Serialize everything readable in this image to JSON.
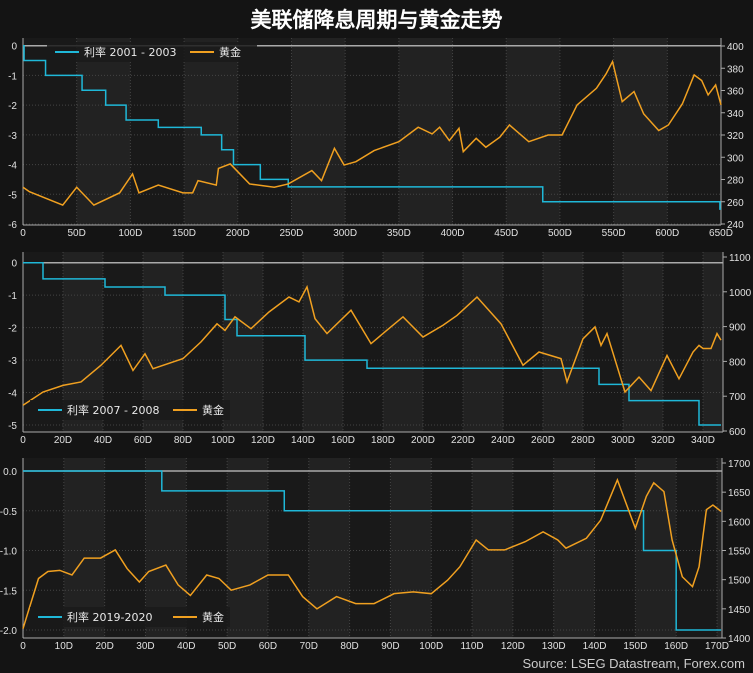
{
  "title": "美联储降息周期与黄金走势",
  "source": "Source: LSEG Datastream, Forex.com",
  "colors": {
    "rate": "#1fb8d8",
    "gold": "#f0a020",
    "background": "#141414",
    "plot": "#1c1c1c"
  },
  "chart_data": [
    {
      "type": "line",
      "legend": [
        "利率 2001 - 2003",
        "黄金"
      ],
      "legend_position": "top-left",
      "grid": true,
      "xlim": [
        0,
        650
      ],
      "x_ticks": [
        "0",
        "50D",
        "100D",
        "150D",
        "200D",
        "250D",
        "300D",
        "350D",
        "400D",
        "450D",
        "500D",
        "550D",
        "600D",
        "650D"
      ],
      "y_left": {
        "lim": [
          -6,
          0
        ],
        "ticks": [
          "0",
          "-1",
          "-2",
          "-3",
          "-4",
          "-5",
          "-6"
        ]
      },
      "y_right": {
        "lim": [
          240,
          400
        ],
        "ticks": [
          "400",
          "380",
          "360",
          "340",
          "320",
          "300",
          "280",
          "260",
          "240"
        ]
      },
      "series": [
        {
          "name": "利率 2001 - 2003",
          "axis": "left",
          "step": true,
          "x": [
            0,
            1,
            21,
            55,
            77,
            96,
            126,
            166,
            185,
            196,
            221,
            247,
            484,
            649,
            650
          ],
          "y": [
            0,
            -0.5,
            -1,
            -1.5,
            -2,
            -2.5,
            -2.75,
            -3,
            -3.5,
            -4,
            -4.5,
            -4.75,
            -5.25,
            -5.5,
            -5.5
          ]
        },
        {
          "name": "黄金",
          "axis": "right",
          "x": [
            0,
            6,
            37,
            50,
            66,
            90,
            102,
            108,
            126,
            149,
            158,
            163,
            180,
            182,
            193,
            211,
            234,
            247,
            269,
            278,
            290,
            299,
            310,
            327,
            350,
            368,
            381,
            388,
            397,
            406,
            410,
            422,
            431,
            444,
            453,
            471,
            489,
            502,
            516,
            534,
            543,
            549,
            558,
            569,
            578,
            592,
            601,
            614,
            625,
            632,
            638,
            645,
            650
          ],
          "y": [
            273,
            269,
            257,
            273,
            257,
            268,
            285,
            268,
            275,
            268,
            268,
            279,
            275,
            290,
            294,
            276,
            273,
            276,
            288,
            279,
            308,
            293,
            296,
            306,
            314,
            327,
            321,
            327,
            315,
            326,
            305,
            317,
            309,
            318,
            329,
            314,
            320,
            320,
            347,
            362,
            375,
            386,
            350,
            359,
            339,
            324,
            329,
            348,
            374,
            369,
            356,
            365,
            347
          ]
        }
      ]
    },
    {
      "type": "line",
      "legend": [
        "利率 2007 - 2008",
        "黄金"
      ],
      "legend_position": "bottom-left",
      "grid": true,
      "xlim": [
        0,
        350
      ],
      "x_ticks": [
        "0",
        "20D",
        "40D",
        "60D",
        "80D",
        "100D",
        "120D",
        "140D",
        "160D",
        "180D",
        "200D",
        "220D",
        "240D",
        "260D",
        "280D",
        "300D",
        "320D",
        "340D"
      ],
      "y_left": {
        "lim": [
          -5,
          0
        ],
        "ticks": [
          "0",
          "-1",
          "-2",
          "-3",
          "-4",
          "-5"
        ]
      },
      "y_right": {
        "lim": [
          600,
          1100
        ],
        "ticks": [
          "1100",
          "1000",
          "900",
          "800",
          "700",
          "600"
        ]
      },
      "series": [
        {
          "name": "利率 2007 - 2008",
          "axis": "left",
          "step": true,
          "x": [
            0,
            10,
            41,
            71,
            101,
            107,
            141,
            172,
            288,
            303,
            338,
            349
          ],
          "y": [
            0,
            -0.5,
            -0.75,
            -1,
            -1.75,
            -2.25,
            -3,
            -3.25,
            -3.75,
            -4.25,
            -5,
            -5
          ]
        },
        {
          "name": "黄金",
          "axis": "right",
          "x": [
            0,
            10,
            20,
            29,
            39,
            49,
            55,
            61,
            65,
            80,
            89,
            97,
            101,
            106,
            114,
            123,
            133,
            138,
            142,
            146,
            152,
            164,
            174,
            181,
            190,
            200,
            210,
            217,
            227,
            239,
            250,
            258,
            269,
            272,
            280,
            286,
            289,
            292,
            301,
            308,
            314,
            322,
            328,
            335,
            338,
            340,
            344,
            347,
            349
          ],
          "y": [
            674,
            712,
            731,
            741,
            789,
            846,
            774,
            822,
            779,
            808,
            856,
            908,
            889,
            928,
            894,
            942,
            985,
            971,
            1014,
            923,
            880,
            947,
            851,
            885,
            928,
            870,
            904,
            932,
            985,
            908,
            789,
            827,
            808,
            741,
            865,
            899,
            846,
            880,
            712,
            755,
            716,
            817,
            750,
            827,
            846,
            837,
            837,
            880,
            861
          ]
        }
      ]
    },
    {
      "type": "line",
      "legend": [
        "利率 2019-2020",
        "黄金"
      ],
      "legend_position": "bottom-left",
      "grid": true,
      "xlim": [
        0,
        172
      ],
      "x_ticks": [
        "0",
        "10D",
        "20D",
        "30D",
        "40D",
        "50D",
        "60D",
        "70D",
        "80D",
        "90D",
        "100D",
        "110D",
        "120D",
        "130D",
        "140D",
        "150D",
        "160D",
        "170D"
      ],
      "y_left": {
        "lim": [
          -2.0,
          0.0
        ],
        "ticks": [
          "0.0",
          "-0.5",
          "-1.0",
          "-1.5",
          "-2.0"
        ]
      },
      "y_right": {
        "lim": [
          1400,
          1700
        ],
        "ticks": [
          "1700",
          "1650",
          "1600",
          "1550",
          "1500",
          "1450",
          "1400"
        ]
      },
      "series": [
        {
          "name": "利率 2019-2020",
          "axis": "left",
          "step": true,
          "x": [
            0,
            34,
            64,
            152,
            160,
            171
          ],
          "y": [
            0,
            -0.25,
            -0.5,
            -1.0,
            -2.0,
            -2.0
          ]
        },
        {
          "name": "黄金",
          "axis": "right",
          "x": [
            0,
            1.4,
            3.8,
            6.1,
            9,
            12,
            15,
            19,
            22.6,
            25.5,
            28.5,
            30.8,
            35,
            38,
            41,
            45,
            48,
            51,
            55.6,
            60,
            65,
            68.5,
            72,
            76.8,
            81.5,
            86,
            90.9,
            95.6,
            100,
            104,
            107,
            111,
            114,
            118,
            123,
            127.4,
            131,
            133,
            138,
            141.5,
            145.6,
            147.4,
            150,
            152.7,
            154.5,
            157,
            159,
            161.5,
            164,
            165.6,
            167.4,
            169,
            171
          ],
          "y": [
            1416,
            1448,
            1502,
            1514,
            1516,
            1508,
            1537,
            1537,
            1551,
            1519,
            1496,
            1514,
            1525,
            1491,
            1473,
            1508,
            1502,
            1482,
            1491,
            1508,
            1508,
            1471,
            1450,
            1471,
            1459,
            1459,
            1476,
            1479,
            1476,
            1499,
            1522,
            1568,
            1551,
            1551,
            1565,
            1582,
            1568,
            1554,
            1571,
            1602,
            1671,
            1637,
            1588,
            1643,
            1666,
            1651,
            1568,
            1505,
            1488,
            1522,
            1620,
            1628,
            1617
          ]
        }
      ]
    }
  ]
}
